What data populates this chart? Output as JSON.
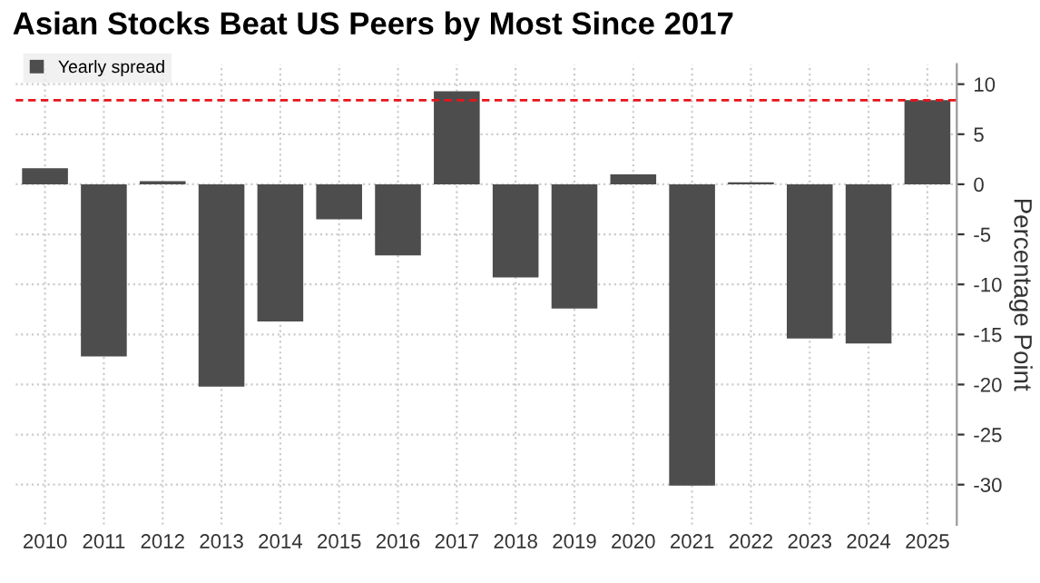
{
  "chart_data": {
    "type": "bar",
    "title": "Asian Stocks Beat US Peers by Most Since 2017",
    "ylabel": "Percentage Point",
    "categories": [
      "2010",
      "2011",
      "2012",
      "2013",
      "2014",
      "2015",
      "2016",
      "2017",
      "2018",
      "2019",
      "2020",
      "2021",
      "2022",
      "2023",
      "2024",
      "2025"
    ],
    "series": [
      {
        "name": "Yearly spread",
        "color": "#4d4d4d",
        "values": [
          1.6,
          -17.2,
          0.3,
          -20.2,
          -13.7,
          -3.5,
          -7.1,
          9.3,
          -9.3,
          -12.4,
          1.0,
          -30.1,
          0.2,
          -15.4,
          -15.9,
          8.4
        ]
      }
    ],
    "ylim": [
      -34,
      12
    ],
    "yticks": [
      10,
      5,
      0,
      -5,
      -10,
      -15,
      -20,
      -25,
      -30
    ],
    "ref_lines": [
      {
        "axis": "y",
        "value": 8.4,
        "color": "#e8141c",
        "line_style": "dashed"
      }
    ],
    "grid": true,
    "legend": "top left"
  }
}
